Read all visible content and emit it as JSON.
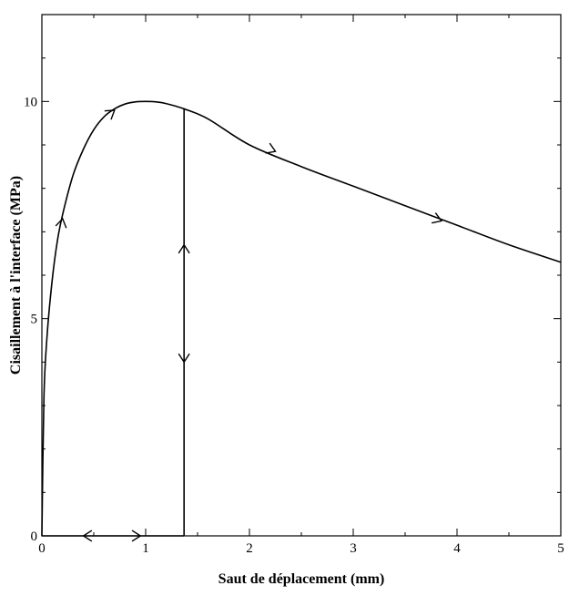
{
  "chart_data": {
    "type": "line",
    "title": "",
    "xlabel": "Saut de déplacement (mm)",
    "ylabel": "Cisaillement à l'interface (MPa)",
    "xlim": [
      0,
      5
    ],
    "ylim": [
      0,
      12
    ],
    "x_ticks": [
      0,
      1,
      2,
      3,
      4,
      5
    ],
    "x_tick_labels": [
      "0",
      "1",
      "2",
      "3",
      "4",
      "5"
    ],
    "y_ticks": [
      0,
      5,
      10
    ],
    "y_tick_labels": [
      "0",
      "5",
      "10"
    ],
    "grid": false,
    "series": [
      {
        "x": [
          0,
          0.02,
          0.05,
          0.1,
          0.15,
          0.2,
          0.3,
          0.4,
          0.5,
          0.6,
          0.7,
          0.8,
          0.9,
          1.0,
          1.1,
          1.2,
          1.37,
          1.6,
          2.0,
          2.5,
          3.0,
          3.5,
          4.0,
          4.5,
          5.0
        ],
        "y": [
          0,
          3.2,
          4.6,
          5.9,
          6.8,
          7.4,
          8.3,
          8.9,
          9.35,
          9.65,
          9.83,
          9.94,
          9.99,
          10.0,
          9.99,
          9.95,
          9.83,
          9.6,
          9.0,
          8.5,
          8.05,
          7.6,
          7.15,
          6.7,
          6.3
        ]
      },
      {
        "x": [
          1.37,
          1.37
        ],
        "y": [
          9.83,
          0
        ]
      },
      {
        "x": [
          0,
          1.37
        ],
        "y": [
          0,
          0
        ]
      }
    ],
    "arrows": [
      {
        "x": 0.2,
        "y": 7.3,
        "direction": "up"
      },
      {
        "x": 0.7,
        "y": 9.8,
        "direction": "right"
      },
      {
        "x": 2.25,
        "y": 8.85,
        "direction": "right"
      },
      {
        "x": 3.85,
        "y": 7.25,
        "direction": "right"
      },
      {
        "x": 1.37,
        "y": 6.7,
        "direction": "up"
      },
      {
        "x": 1.37,
        "y": 4.0,
        "direction": "down"
      },
      {
        "x": 0.4,
        "y": 0,
        "direction": "left"
      },
      {
        "x": 0.95,
        "y": 0,
        "direction": "right"
      }
    ]
  }
}
